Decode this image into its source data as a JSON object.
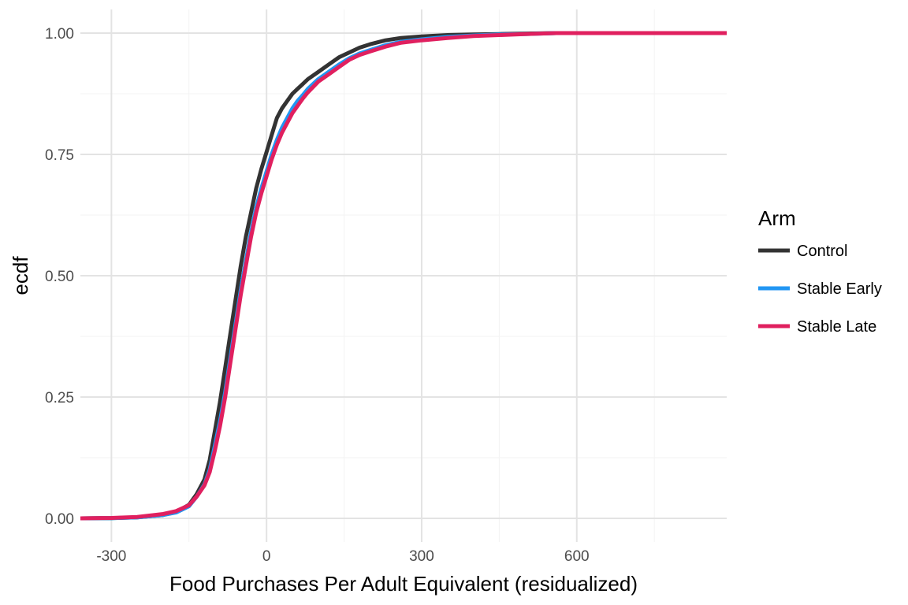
{
  "chart_data": {
    "type": "line",
    "title": "",
    "xlabel": "Food Purchases Per Adult Equivalent (residualized)",
    "ylabel": "ecdf",
    "xlim": [
      -360,
      890
    ],
    "ylim": [
      0,
      1
    ],
    "x_ticks": [
      -300,
      0,
      300,
      600
    ],
    "x_tick_labels": [
      "-300",
      "0",
      "300",
      "600"
    ],
    "y_ticks": [
      0,
      0.25,
      0.5,
      0.75,
      1
    ],
    "y_tick_labels": [
      "0.00",
      "0.25",
      "0.50",
      "0.75",
      "1.00"
    ],
    "grid": true,
    "legend": {
      "title": "Arm",
      "placement": "right"
    },
    "series": [
      {
        "name": "Control",
        "color": "#333333",
        "x": [
          -360,
          -300,
          -250,
          -200,
          -175,
          -150,
          -135,
          -120,
          -110,
          -100,
          -90,
          -80,
          -70,
          -60,
          -50,
          -40,
          -30,
          -20,
          -10,
          0,
          10,
          20,
          30,
          40,
          50,
          60,
          70,
          80,
          100,
          120,
          140,
          160,
          180,
          200,
          230,
          260,
          300,
          350,
          400,
          450,
          500,
          560,
          600,
          890
        ],
        "y": [
          0,
          0.0005,
          0.002,
          0.007,
          0.013,
          0.028,
          0.05,
          0.08,
          0.12,
          0.18,
          0.24,
          0.31,
          0.38,
          0.45,
          0.52,
          0.58,
          0.63,
          0.68,
          0.72,
          0.755,
          0.79,
          0.825,
          0.845,
          0.86,
          0.875,
          0.885,
          0.895,
          0.905,
          0.92,
          0.935,
          0.95,
          0.96,
          0.97,
          0.977,
          0.985,
          0.99,
          0.993,
          0.996,
          0.997,
          0.998,
          0.999,
          1,
          1,
          1
        ]
      },
      {
        "name": "Stable Early",
        "color": "#2196F3",
        "x": [
          -360,
          -300,
          -250,
          -200,
          -175,
          -150,
          -135,
          -120,
          -110,
          -100,
          -90,
          -80,
          -70,
          -60,
          -50,
          -40,
          -30,
          -20,
          -10,
          0,
          10,
          20,
          30,
          40,
          50,
          60,
          70,
          80,
          100,
          120,
          140,
          160,
          180,
          200,
          230,
          260,
          300,
          350,
          400,
          450,
          500,
          560,
          600,
          890
        ],
        "y": [
          0,
          0.0005,
          0.002,
          0.007,
          0.012,
          0.025,
          0.045,
          0.07,
          0.1,
          0.15,
          0.2,
          0.26,
          0.33,
          0.4,
          0.47,
          0.53,
          0.59,
          0.64,
          0.68,
          0.715,
          0.75,
          0.78,
          0.805,
          0.825,
          0.845,
          0.86,
          0.872,
          0.885,
          0.905,
          0.92,
          0.935,
          0.948,
          0.958,
          0.965,
          0.975,
          0.982,
          0.987,
          0.992,
          0.995,
          0.997,
          0.998,
          1,
          1,
          1
        ]
      },
      {
        "name": "Stable Late",
        "color": "#E0205F",
        "x": [
          -360,
          -300,
          -250,
          -200,
          -175,
          -150,
          -135,
          -120,
          -110,
          -100,
          -90,
          -80,
          -70,
          -60,
          -50,
          -40,
          -30,
          -20,
          -10,
          0,
          10,
          20,
          30,
          40,
          50,
          60,
          70,
          80,
          100,
          120,
          140,
          160,
          180,
          200,
          230,
          260,
          300,
          350,
          400,
          450,
          500,
          560,
          600,
          890
        ],
        "y": [
          0,
          0.0008,
          0.003,
          0.009,
          0.015,
          0.027,
          0.045,
          0.068,
          0.095,
          0.14,
          0.19,
          0.25,
          0.32,
          0.39,
          0.46,
          0.52,
          0.58,
          0.63,
          0.67,
          0.705,
          0.74,
          0.77,
          0.795,
          0.815,
          0.835,
          0.85,
          0.865,
          0.878,
          0.9,
          0.915,
          0.93,
          0.945,
          0.955,
          0.962,
          0.972,
          0.98,
          0.985,
          0.99,
          0.994,
          0.996,
          0.998,
          1,
          1,
          1
        ]
      }
    ]
  }
}
